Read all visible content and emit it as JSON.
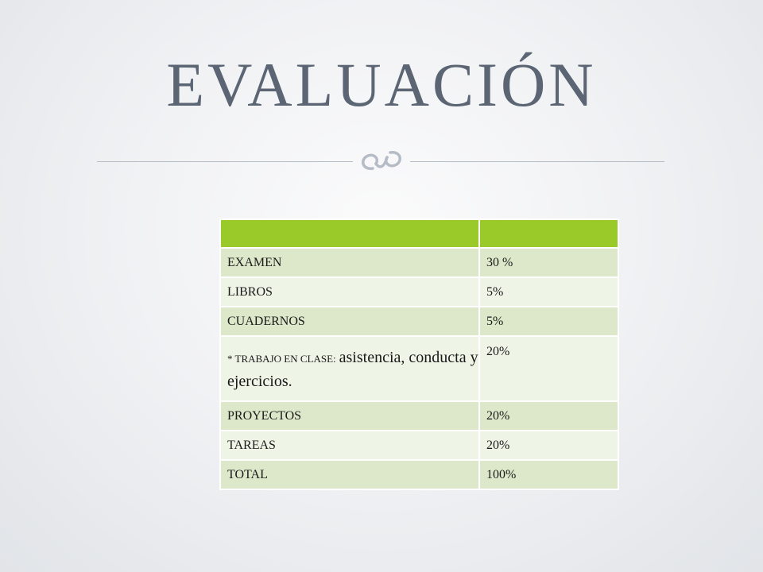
{
  "slide": {
    "title": "EVALUACIÓN"
  },
  "table": {
    "header": [
      "",
      ""
    ],
    "rows": [
      {
        "item": "EXAMEN",
        "value": "30 %"
      },
      {
        "item": "LIBROS",
        "value": "5%"
      },
      {
        "item": "CUADERNOS",
        "value": "5%"
      },
      {
        "item_prefix": "* TRABAJO EN CLASE:",
        "item_rest": "asistencia, conducta y ejercicios.",
        "value": "20%"
      },
      {
        "item": "PROYECTOS",
        "value": "20%"
      },
      {
        "item": "TAREAS",
        "value": "20%"
      },
      {
        "item": "TOTAL",
        "value": "100%"
      }
    ]
  },
  "colors": {
    "title": "#5b6573",
    "header_green": "#9ac92a",
    "row_dark": "#dce8c9",
    "row_light": "#eef4e6"
  },
  "icons": {
    "divider_ornament": "scroll-ornament-icon"
  }
}
